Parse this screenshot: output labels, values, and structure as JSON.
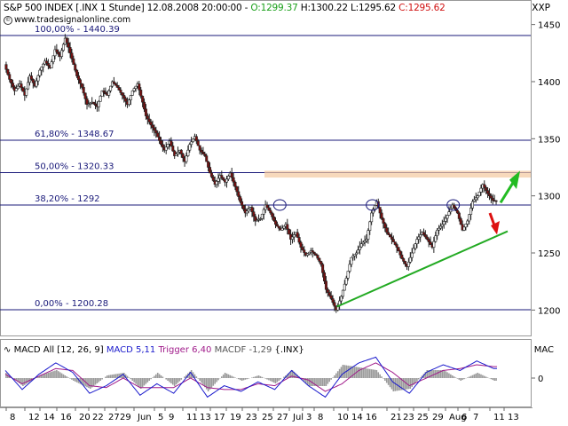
{
  "header": {
    "title": "S&P 500 INDEX [.INX  1 Stunde] 12.08.2008 20:00:00 -",
    "open": "O:1299.37",
    "high": "H:1300.22",
    "low": "L:1295.62",
    "close": "C:1295.62",
    "source": "www.tradesignalonline.com",
    "symbol": "XXP"
  },
  "macd_header": {
    "label": "MACD All [12, 26, 9]",
    "macd": "MACD 5,11",
    "trigger": "Trigger 6,40",
    "macdf": "MACDF -1,29",
    "symbol": "{.INX}",
    "short": "MAC"
  },
  "colors": {
    "up_candle": "#ffffff",
    "down_candle": "#7a1010",
    "fib_line": "#1a1a7a",
    "support": "#22aa22",
    "resistance_band": "#f4c9a0",
    "up_arrow": "#22bb22",
    "down_arrow": "#dd1111",
    "macd_line": "#1a1acc",
    "trigger_line": "#a01a8a",
    "histogram": "#9a9a9a"
  },
  "chart_data": {
    "type": "line",
    "price_range": [
      1170,
      1465
    ],
    "y_ticks": [
      1450,
      1400,
      1350,
      1300,
      1250,
      1200
    ],
    "x_ticks": [
      "8",
      "12",
      "14",
      "16",
      "20",
      "22",
      "27",
      "29",
      "Jun",
      "5",
      "9",
      "11",
      "13",
      "17",
      "19",
      "23",
      "25",
      "27",
      "Jul",
      "3",
      "8",
      "10",
      "14",
      "16",
      "21",
      "23",
      "25",
      "29",
      "Aug",
      "6",
      "7",
      "11",
      "13"
    ],
    "fib_levels": [
      {
        "label": "100,00% - 1440.39",
        "value": 1440.39
      },
      {
        "label": "61,80% - 1348.67",
        "value": 1348.67
      },
      {
        "label": "50,00% - 1320.33",
        "value": 1320.33
      },
      {
        "label": "38,20% - 1292",
        "value": 1292
      },
      {
        "label": "0,00% - 1200.28",
        "value": 1200.28
      }
    ],
    "price_path": [
      [
        0,
        1415
      ],
      [
        3,
        1402
      ],
      [
        6,
        1392
      ],
      [
        9,
        1398
      ],
      [
        12,
        1388
      ],
      [
        15,
        1405
      ],
      [
        18,
        1396
      ],
      [
        21,
        1410
      ],
      [
        24,
        1418
      ],
      [
        27,
        1412
      ],
      [
        30,
        1428
      ],
      [
        33,
        1422
      ],
      [
        36,
        1438
      ],
      [
        38,
        1430
      ],
      [
        40,
        1420
      ],
      [
        43,
        1405
      ],
      [
        46,
        1395
      ],
      [
        49,
        1380
      ],
      [
        52,
        1382
      ],
      [
        55,
        1378
      ],
      [
        58,
        1392
      ],
      [
        61,
        1388
      ],
      [
        64,
        1400
      ],
      [
        67,
        1395
      ],
      [
        70,
        1388
      ],
      [
        73,
        1380
      ],
      [
        76,
        1392
      ],
      [
        79,
        1398
      ],
      [
        82,
        1382
      ],
      [
        84,
        1370
      ],
      [
        87,
        1362
      ],
      [
        90,
        1355
      ],
      [
        93,
        1345
      ],
      [
        95,
        1340
      ],
      [
        98,
        1348
      ],
      [
        101,
        1335
      ],
      [
        104,
        1340
      ],
      [
        107,
        1330
      ],
      [
        110,
        1345
      ],
      [
        113,
        1352
      ],
      [
        116,
        1340
      ],
      [
        119,
        1335
      ],
      [
        122,
        1320
      ],
      [
        125,
        1310
      ],
      [
        128,
        1318
      ],
      [
        131,
        1312
      ],
      [
        134,
        1320
      ],
      [
        137,
        1308
      ],
      [
        140,
        1295
      ],
      [
        143,
        1285
      ],
      [
        146,
        1290
      ],
      [
        149,
        1278
      ],
      [
        152,
        1280
      ],
      [
        155,
        1292
      ],
      [
        158,
        1285
      ],
      [
        161,
        1275
      ],
      [
        164,
        1270
      ],
      [
        167,
        1275
      ],
      [
        170,
        1262
      ],
      [
        173,
        1268
      ],
      [
        176,
        1255
      ],
      [
        179,
        1248
      ],
      [
        182,
        1252
      ],
      [
        185,
        1248
      ],
      [
        188,
        1240
      ],
      [
        191,
        1218
      ],
      [
        194,
        1210
      ],
      [
        197,
        1200
      ],
      [
        200,
        1212
      ],
      [
        203,
        1228
      ],
      [
        206,
        1246
      ],
      [
        209,
        1250
      ],
      [
        212,
        1258
      ],
      [
        215,
        1262
      ],
      [
        218,
        1285
      ],
      [
        221,
        1295
      ],
      [
        224,
        1280
      ],
      [
        227,
        1268
      ],
      [
        230,
        1262
      ],
      [
        233,
        1255
      ],
      [
        236,
        1245
      ],
      [
        239,
        1238
      ],
      [
        242,
        1250
      ],
      [
        245,
        1262
      ],
      [
        248,
        1268
      ],
      [
        251,
        1262
      ],
      [
        254,
        1255
      ],
      [
        257,
        1270
      ],
      [
        260,
        1275
      ],
      [
        263,
        1283
      ],
      [
        266,
        1292
      ],
      [
        269,
        1285
      ],
      [
        272,
        1270
      ],
      [
        275,
        1278
      ],
      [
        278,
        1295
      ],
      [
        281,
        1300
      ],
      [
        284,
        1310
      ],
      [
        287,
        1302
      ],
      [
        290,
        1296
      ],
      [
        292,
        1295.62
      ]
    ],
    "macd_range": [
      -14,
      14
    ],
    "macd_line": [
      [
        0,
        4
      ],
      [
        10,
        -6
      ],
      [
        20,
        2
      ],
      [
        30,
        8
      ],
      [
        40,
        3
      ],
      [
        50,
        -8
      ],
      [
        60,
        -4
      ],
      [
        70,
        2
      ],
      [
        80,
        -9
      ],
      [
        90,
        -3
      ],
      [
        100,
        -8
      ],
      [
        110,
        3
      ],
      [
        120,
        -10
      ],
      [
        130,
        -4
      ],
      [
        140,
        -7
      ],
      [
        150,
        -2
      ],
      [
        160,
        -6
      ],
      [
        170,
        4
      ],
      [
        180,
        -4
      ],
      [
        190,
        -10
      ],
      [
        200,
        2
      ],
      [
        210,
        8
      ],
      [
        220,
        11
      ],
      [
        230,
        -2
      ],
      [
        240,
        -8
      ],
      [
        250,
        3
      ],
      [
        260,
        7
      ],
      [
        270,
        4
      ],
      [
        280,
        9
      ],
      [
        290,
        5
      ]
    ],
    "trigger_line": [
      [
        0,
        2
      ],
      [
        10,
        -3
      ],
      [
        20,
        1
      ],
      [
        30,
        5
      ],
      [
        40,
        4
      ],
      [
        50,
        -4
      ],
      [
        60,
        -5
      ],
      [
        70,
        0
      ],
      [
        80,
        -5
      ],
      [
        90,
        -5
      ],
      [
        100,
        -5
      ],
      [
        110,
        0
      ],
      [
        120,
        -5
      ],
      [
        130,
        -6
      ],
      [
        140,
        -6
      ],
      [
        150,
        -3
      ],
      [
        160,
        -4
      ],
      [
        170,
        1
      ],
      [
        180,
        -1
      ],
      [
        190,
        -7
      ],
      [
        200,
        -3
      ],
      [
        210,
        4
      ],
      [
        220,
        8
      ],
      [
        230,
        3
      ],
      [
        240,
        -4
      ],
      [
        250,
        0
      ],
      [
        260,
        4
      ],
      [
        270,
        5
      ],
      [
        280,
        7
      ],
      [
        290,
        6
      ]
    ]
  }
}
